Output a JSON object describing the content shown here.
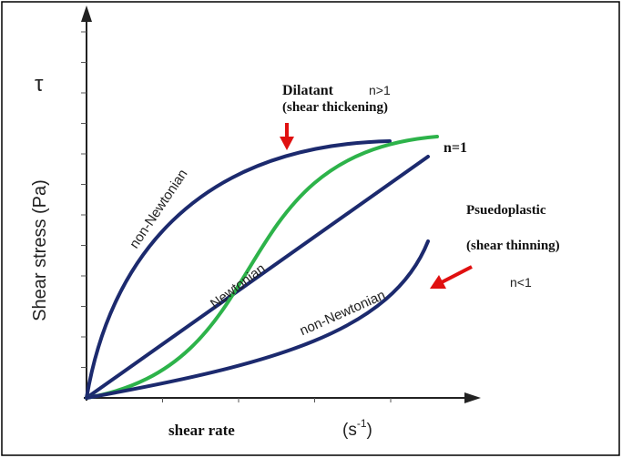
{
  "axes": {
    "y_symbol": "τ",
    "y_label": "Shear stress (Pa)",
    "x_label": "shear rate",
    "x_unit_open": "(s",
    "x_unit_exponent": "-1",
    "x_unit_close": ")"
  },
  "curves": {
    "dilatant": {
      "name": "Dilatant",
      "index": "n>1",
      "description": "(shear thickening)",
      "curve_label": "non-Newtonian"
    },
    "newtonian": {
      "index": "n=1",
      "curve_label": "Newtonian"
    },
    "pseudoplastic": {
      "name": "Psuedoplastic",
      "description": "(shear thinning)",
      "index": "n<1",
      "curve_label": "non-Newtonian"
    }
  }
}
